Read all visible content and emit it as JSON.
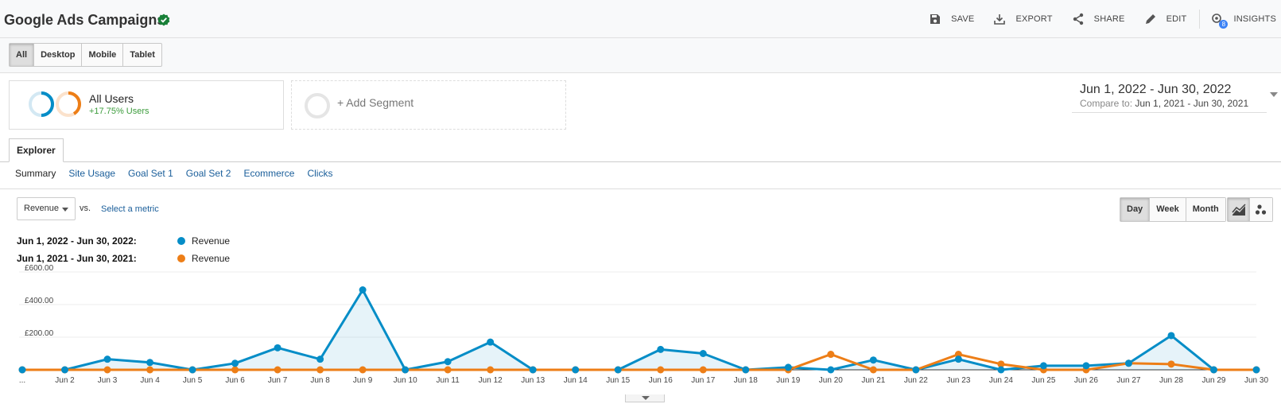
{
  "header": {
    "title": "Google Ads Campaigns",
    "actions": {
      "save": "SAVE",
      "export": "EXPORT",
      "share": "SHARE",
      "edit": "EDIT",
      "insights": "INSIGHTS",
      "insights_badge": "8"
    }
  },
  "device_tabs": [
    "All",
    "Desktop",
    "Mobile",
    "Tablet"
  ],
  "segments": {
    "primary": {
      "name": "All Users",
      "change": "+17.75% Users"
    },
    "add": "+ Add Segment"
  },
  "date_range": {
    "main": "Jun 1, 2022 - Jun 30, 2022",
    "compare_label": "Compare to:",
    "compare_range": "Jun 1, 2021 - Jun 30, 2021"
  },
  "explorer_tab": "Explorer",
  "subtabs": [
    "Summary",
    "Site Usage",
    "Goal Set 1",
    "Goal Set 2",
    "Ecommerce",
    "Clicks"
  ],
  "metric": {
    "selected": "Revenue",
    "vs": "vs.",
    "select_metric": "Select a metric"
  },
  "period_buttons": [
    "Day",
    "Week",
    "Month"
  ],
  "legend": [
    {
      "range": "Jun 1, 2022 - Jun 30, 2022:",
      "metric": "Revenue",
      "color": "#058dc7"
    },
    {
      "range": "Jun 1, 2021 - Jun 30, 2021:",
      "metric": "Revenue",
      "color": "#ed7e17"
    }
  ],
  "chart_data": {
    "type": "area",
    "y_tick_labels": [
      "£600.00",
      "£400.00",
      "£200.00"
    ],
    "y_ticks": [
      600,
      400,
      200
    ],
    "ylim": [
      0,
      600
    ],
    "categories": [
      "...",
      "Jun 2",
      "Jun 3",
      "Jun 4",
      "Jun 5",
      "Jun 6",
      "Jun 7",
      "Jun 8",
      "Jun 9",
      "Jun 10",
      "Jun 11",
      "Jun 12",
      "Jun 13",
      "Jun 14",
      "Jun 15",
      "Jun 16",
      "Jun 17",
      "Jun 18",
      "Jun 19",
      "Jun 20",
      "Jun 21",
      "Jun 22",
      "Jun 23",
      "Jun 24",
      "Jun 25",
      "Jun 26",
      "Jun 27",
      "Jun 28",
      "Jun 29",
      "Jun 30"
    ],
    "series": [
      {
        "name": "Revenue",
        "color": "#058dc7",
        "values": [
          0,
          0,
          65,
          45,
          0,
          40,
          135,
          65,
          490,
          0,
          50,
          170,
          0,
          0,
          0,
          125,
          100,
          0,
          15,
          0,
          60,
          0,
          65,
          0,
          25,
          25,
          40,
          210,
          0,
          0
        ]
      },
      {
        "name": "Revenue",
        "color": "#ed7e17",
        "values": [
          0,
          0,
          0,
          0,
          0,
          0,
          0,
          0,
          0,
          0,
          0,
          0,
          0,
          0,
          0,
          0,
          0,
          0,
          0,
          95,
          0,
          0,
          95,
          35,
          0,
          0,
          40,
          35,
          0,
          0
        ]
      }
    ]
  }
}
